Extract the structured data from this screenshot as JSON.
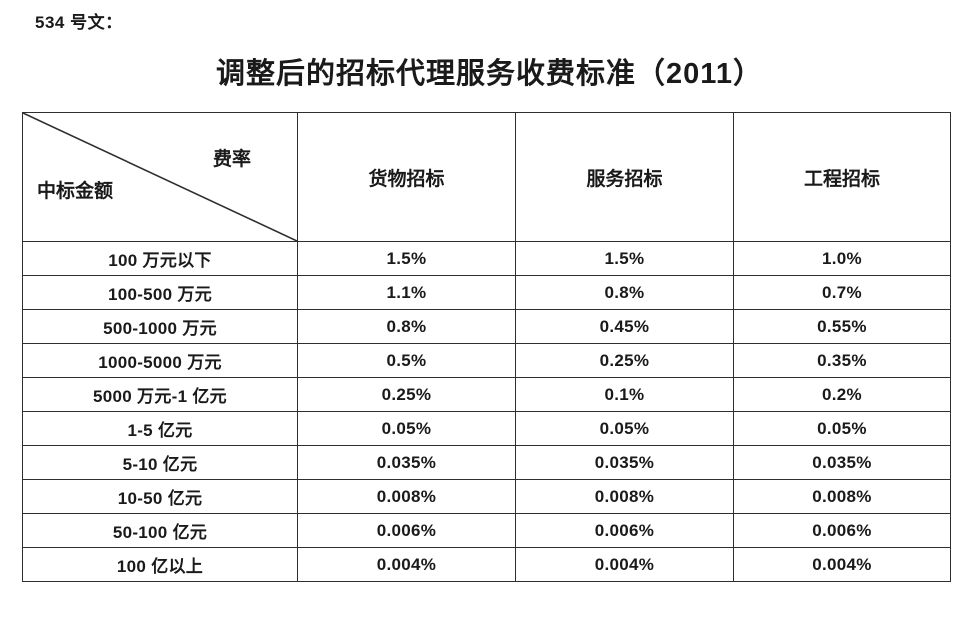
{
  "page": {
    "doc_label": "534 号文：",
    "title": "调整后的招标代理服务收费标准（2011）"
  },
  "table": {
    "corner": {
      "top_right": "费率",
      "bottom_left": "中标金额"
    },
    "columns": [
      "货物招标",
      "服务招标",
      "工程招标"
    ],
    "rows": [
      {
        "label": "100 万元以下",
        "values": [
          "1.5%",
          "1.5%",
          "1.0%"
        ]
      },
      {
        "label": "100-500 万元",
        "values": [
          "1.1%",
          "0.8%",
          "0.7%"
        ]
      },
      {
        "label": "500-1000 万元",
        "values": [
          "0.8%",
          "0.45%",
          "0.55%"
        ]
      },
      {
        "label": "1000-5000 万元",
        "values": [
          "0.5%",
          "0.25%",
          "0.35%"
        ]
      },
      {
        "label": "5000 万元-1 亿元",
        "values": [
          "0.25%",
          "0.1%",
          "0.2%"
        ]
      },
      {
        "label": "1-5 亿元",
        "values": [
          "0.05%",
          "0.05%",
          "0.05%"
        ]
      },
      {
        "label": "5-10 亿元",
        "values": [
          "0.035%",
          "0.035%",
          "0.035%"
        ]
      },
      {
        "label": "10-50 亿元",
        "values": [
          "0.008%",
          "0.008%",
          "0.008%"
        ]
      },
      {
        "label": "50-100 亿元",
        "values": [
          "0.006%",
          "0.006%",
          "0.006%"
        ]
      },
      {
        "label": "100 亿以上",
        "values": [
          "0.004%",
          "0.004%",
          "0.004%"
        ]
      }
    ]
  }
}
